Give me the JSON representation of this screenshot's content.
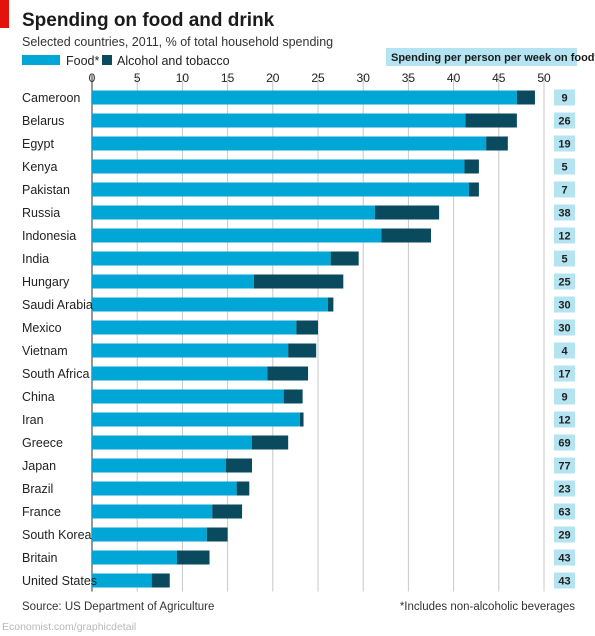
{
  "chart_data": {
    "type": "bar",
    "stacked": true,
    "orientation": "horizontal",
    "title": "Spending on food and drink",
    "subtitle": "Selected countries, 2011, % of total household spending",
    "xlim": [
      0,
      50
    ],
    "xticks": [
      0,
      5,
      10,
      15,
      20,
      25,
      30,
      35,
      40,
      45,
      50
    ],
    "grid": true,
    "legend_position": "top-left",
    "categories": [
      "Cameroon",
      "Belarus",
      "Egypt",
      "Kenya",
      "Pakistan",
      "Russia",
      "Indonesia",
      "India",
      "Hungary",
      "Saudi Arabia",
      "Mexico",
      "Vietnam",
      "South Africa",
      "China",
      "Iran",
      "Greece",
      "Japan",
      "Brazil",
      "France",
      "South Korea",
      "Britain",
      "United States"
    ],
    "series": [
      {
        "name": "Food*",
        "color": "#00a6d6",
        "values": [
          47.0,
          41.3,
          43.6,
          41.2,
          41.7,
          31.3,
          32.0,
          26.4,
          17.9,
          26.1,
          22.6,
          21.7,
          19.4,
          21.2,
          23.0,
          17.7,
          14.8,
          16.0,
          13.3,
          12.7,
          9.4,
          6.6
        ]
      },
      {
        "name": "Alcohol and tobacco",
        "color": "#0a4a5e",
        "values": [
          2.0,
          5.7,
          2.4,
          1.6,
          1.1,
          7.1,
          5.5,
          3.1,
          9.9,
          0.6,
          2.4,
          3.1,
          4.5,
          2.1,
          0.4,
          4.0,
          2.9,
          1.4,
          3.3,
          2.3,
          3.6,
          2.0
        ]
      }
    ],
    "spending_per_person": {
      "label": "Spending per person per week on food*, $",
      "values": [
        9,
        26,
        19,
        5,
        7,
        38,
        12,
        5,
        25,
        30,
        30,
        4,
        17,
        9,
        12,
        69,
        77,
        23,
        63,
        29,
        43,
        43
      ]
    },
    "source": "Source: US Department of Agriculture",
    "footnote": "*Includes non-alcoholic beverages",
    "credit": "Economist.com/graphicdetail",
    "accent_color": "#e3120b"
  }
}
